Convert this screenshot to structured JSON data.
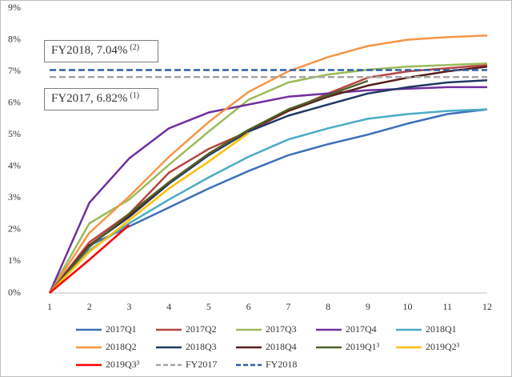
{
  "chart_data": {
    "type": "line",
    "x": [
      1,
      2,
      3,
      4,
      5,
      6,
      7,
      8,
      9,
      10,
      11,
      12
    ],
    "xlim": [
      1,
      12
    ],
    "xticks": [
      1,
      2,
      3,
      4,
      5,
      6,
      7,
      8,
      9,
      10,
      11,
      12
    ],
    "ylim": [
      0,
      9
    ],
    "yticks": [
      {
        "value": 0,
        "label": "0%"
      },
      {
        "value": 1,
        "label": "1%"
      },
      {
        "value": 2,
        "label": "2%"
      },
      {
        "value": 3,
        "label": "3%"
      },
      {
        "value": 4,
        "label": "4%"
      },
      {
        "value": 5,
        "label": "5%"
      },
      {
        "value": 6,
        "label": "6%"
      },
      {
        "value": 7,
        "label": "7%"
      },
      {
        "value": 8,
        "label": "8%"
      },
      {
        "value": 9,
        "label": "9%"
      }
    ],
    "grid": false,
    "legend": "bottom",
    "annotations": [
      {
        "text": "FY2018, 7.04%",
        "note": "(2)"
      },
      {
        "text": "FY2017, 6.82%",
        "note": "(1)"
      }
    ],
    "series": [
      {
        "name": "2017Q1",
        "color": "#3e70b8",
        "values": [
          0,
          1.5,
          2.1,
          2.7,
          3.3,
          3.85,
          4.35,
          4.7,
          5.0,
          5.35,
          5.65,
          5.8
        ]
      },
      {
        "name": "2017Q2",
        "color": "#b84541",
        "values": [
          0,
          1.6,
          2.5,
          3.8,
          4.55,
          5.1,
          5.75,
          6.3,
          6.8,
          7.0,
          7.1,
          7.2
        ]
      },
      {
        "name": "2017Q3",
        "color": "#9bbb59",
        "values": [
          0,
          2.2,
          2.95,
          4.05,
          5.1,
          6.1,
          6.65,
          6.9,
          7.05,
          7.15,
          7.2,
          7.25
        ]
      },
      {
        "name": "2017Q4",
        "color": "#7030a0",
        "values": [
          0,
          2.85,
          4.25,
          5.2,
          5.7,
          5.95,
          6.2,
          6.3,
          6.4,
          6.45,
          6.5,
          6.5
        ]
      },
      {
        "name": "2018Q1",
        "color": "#4bacc6",
        "values": [
          0,
          1.35,
          2.2,
          2.95,
          3.65,
          4.3,
          4.85,
          5.2,
          5.5,
          5.65,
          5.75,
          5.8
        ]
      },
      {
        "name": "2018Q2",
        "color": "#f79646",
        "values": [
          0,
          1.9,
          3.05,
          4.3,
          5.4,
          6.35,
          7.0,
          7.45,
          7.8,
          8.0,
          8.08,
          8.13
        ]
      },
      {
        "name": "2018Q3",
        "color": "#1f3864",
        "values": [
          0,
          1.5,
          2.4,
          3.45,
          4.35,
          5.1,
          5.6,
          5.95,
          6.3,
          6.5,
          6.65,
          6.72
        ]
      },
      {
        "name": "2018Q4",
        "color": "#5a1e1e",
        "values": [
          0,
          1.5,
          2.45,
          3.5,
          4.4,
          5.15,
          5.75,
          6.2,
          6.55,
          6.8,
          7.0,
          7.15
        ]
      },
      {
        "name": "2019Q1³",
        "color": "#4f6228",
        "values": [
          0,
          1.45,
          2.5,
          3.5,
          4.4,
          5.15,
          5.8,
          6.25,
          6.7,
          null,
          null,
          null
        ]
      },
      {
        "name": "2019Q2³",
        "color": "#ffc000",
        "values": [
          0,
          1.3,
          2.3,
          3.3,
          4.15,
          5.05,
          null,
          null,
          null,
          null,
          null,
          null
        ]
      },
      {
        "name": "2019Q3³",
        "color": "#ff0000",
        "values": [
          0,
          1.05,
          2.15,
          null,
          null,
          null,
          null,
          null,
          null,
          null,
          null,
          null
        ]
      },
      {
        "name": "FY2017",
        "color": "#a6a6a6",
        "dash": true,
        "values": [
          6.82,
          6.82,
          6.82,
          6.82,
          6.82,
          6.82,
          6.82,
          6.82,
          6.82,
          6.82,
          6.82,
          6.82
        ]
      },
      {
        "name": "FY2018",
        "color": "#2e5fa8",
        "dash": true,
        "values": [
          7.04,
          7.04,
          7.04,
          7.04,
          7.04,
          7.04,
          7.04,
          7.04,
          7.04,
          7.04,
          7.04,
          7.04
        ]
      }
    ]
  }
}
